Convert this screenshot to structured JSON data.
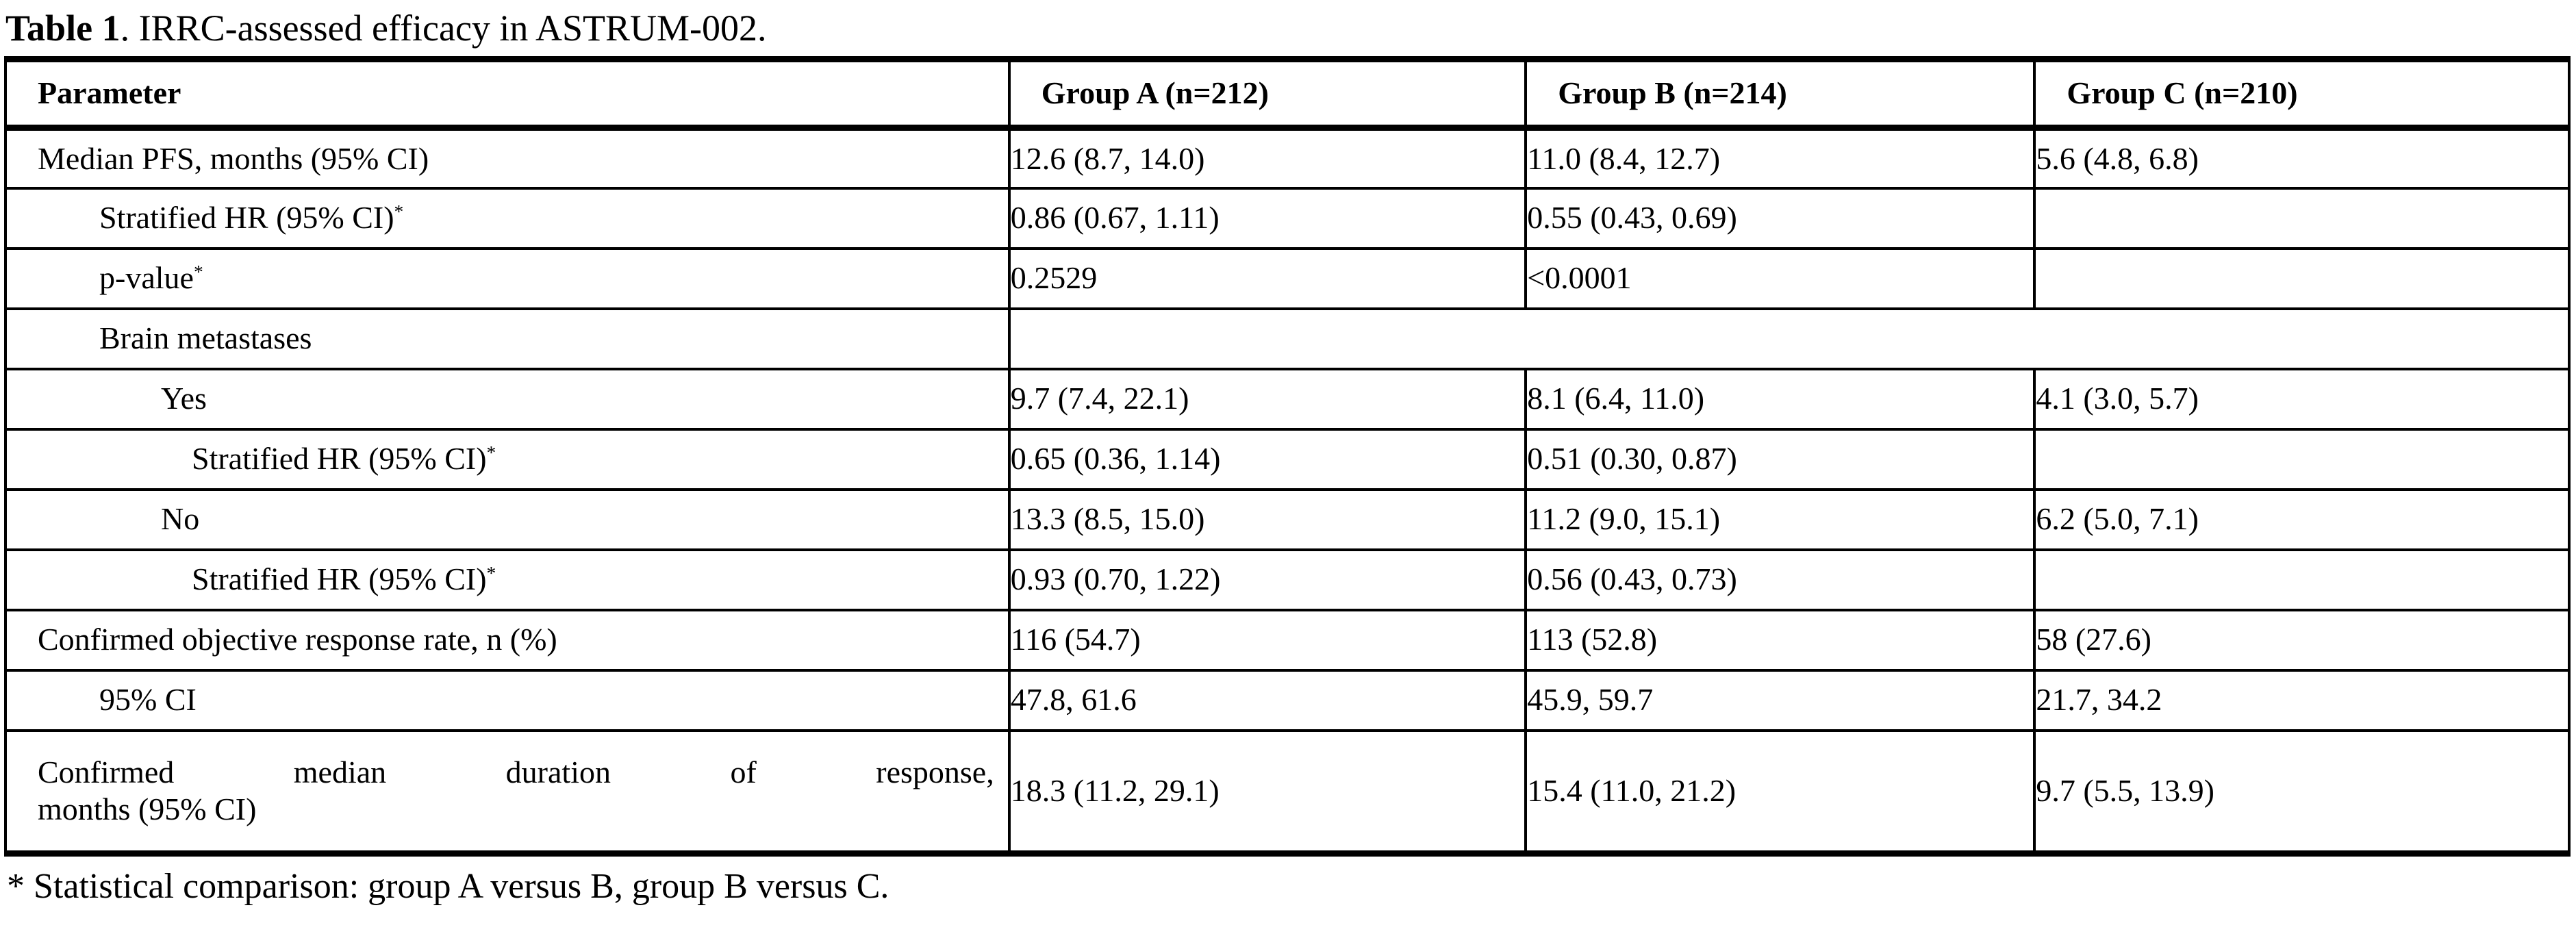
{
  "title": {
    "label": "Table 1",
    "rest": ". IRRC-assessed efficacy in ASTRUM-002."
  },
  "table": {
    "columns": [
      "Parameter",
      "Group A (n=212)",
      "Group B (n=214)",
      "Group C (n=210)"
    ],
    "col_widths_pct": [
      39.15,
      20.15,
      19.85,
      20.85
    ],
    "rows": [
      {
        "param": "Median PFS, months (95% CI)",
        "indent": 0,
        "cells": [
          "12.6 (8.7, 14.0)",
          "11.0 (8.4, 12.7)",
          "5.6 (4.8, 6.8)"
        ]
      },
      {
        "param": "Stratified HR (95% CI)",
        "sup": "*",
        "indent": 1,
        "cells": [
          "0.86 (0.67, 1.11)",
          "0.55 (0.43, 0.69)",
          ""
        ]
      },
      {
        "param": "p-value",
        "sup": "*",
        "indent": 1,
        "cells": [
          "0.2529",
          "<0.0001",
          ""
        ]
      },
      {
        "param": "Brain metastases",
        "indent": 1,
        "merged": true
      },
      {
        "param": "Yes",
        "indent": 2,
        "cells": [
          "9.7 (7.4, 22.1)",
          "8.1 (6.4, 11.0)",
          "4.1 (3.0, 5.7)"
        ]
      },
      {
        "param": "Stratified HR (95% CI)",
        "sup": "*",
        "indent": 3,
        "cells": [
          "0.65 (0.36, 1.14)",
          "0.51 (0.30, 0.87)",
          ""
        ]
      },
      {
        "param": "No",
        "indent": 2,
        "cells": [
          "13.3 (8.5, 15.0)",
          "11.2 (9.0, 15.1)",
          "6.2 (5.0, 7.1)"
        ]
      },
      {
        "param": "Stratified HR (95% CI)",
        "sup": "*",
        "indent": 3,
        "cells": [
          "0.93 (0.70, 1.22)",
          "0.56 (0.43, 0.73)",
          ""
        ]
      },
      {
        "param": "Confirmed objective response rate, n (%)",
        "indent": 0,
        "cells": [
          "116 (54.7)",
          "113 (52.8)",
          "58 (27.6)"
        ]
      },
      {
        "param": "95% CI",
        "indent": 1,
        "cells": [
          "47.8, 61.6",
          "45.9, 59.7",
          "21.7, 34.2"
        ]
      },
      {
        "param": "Confirmed median duration of response, months (95% CI)",
        "param_lines": [
          "Confirmed median duration of response,",
          "months (95% CI)"
        ],
        "indent": 0,
        "tall": true,
        "cells": [
          "18.3 (11.2, 29.1)",
          "15.4 (11.0, 21.2)",
          "9.7 (5.5, 13.9)"
        ]
      }
    ]
  },
  "footnote": "* Statistical comparison: group A versus B, group B versus C."
}
